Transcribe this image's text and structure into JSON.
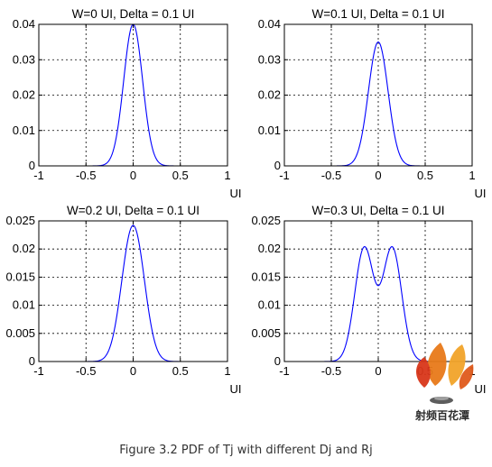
{
  "figure_caption": "Figure 3.2 PDF of Tj with different Dj and Rj",
  "watermark_text": "射频百花潭",
  "colors": {
    "line": "#0000ff",
    "axes": "#000000",
    "grid": "#000000",
    "background": "#ffffff"
  },
  "chart_data": [
    {
      "type": "line",
      "title": "W=0 UI, Delta = 0.1 UI",
      "xlabel": "UI",
      "ylabel": "",
      "xlim": [
        -1,
        1
      ],
      "ylim": [
        0,
        0.04
      ],
      "xticks": [
        -1,
        -0.5,
        0,
        0.5,
        1
      ],
      "xtick_labels": [
        "-1",
        "-0.5",
        "0",
        "0.5",
        "1"
      ],
      "yticks": [
        0,
        0.01,
        0.02,
        0.03,
        0.04
      ],
      "ytick_labels": [
        "0",
        "0.01",
        "0.02",
        "0.03",
        "0.04"
      ],
      "grid": true,
      "series": [
        {
          "x_range": [
            -0.9,
            0.9
          ],
          "W": 0,
          "Delta": 0.1,
          "peak": 0.04
        }
      ]
    },
    {
      "type": "line",
      "title": "W=0.1 UI, Delta = 0.1 UI",
      "xlabel": "UI",
      "ylabel": "",
      "xlim": [
        -1,
        1
      ],
      "ylim": [
        0,
        0.04
      ],
      "xticks": [
        -1,
        -0.5,
        0,
        0.5,
        1
      ],
      "xtick_labels": [
        "-1",
        "-0.5",
        "0",
        "0.5",
        "1"
      ],
      "yticks": [
        0,
        0.01,
        0.02,
        0.03,
        0.04
      ],
      "ytick_labels": [
        "0",
        "0.01",
        "0.02",
        "0.03",
        "0.04"
      ],
      "grid": true,
      "series": [
        {
          "x_range": [
            -0.9,
            0.9
          ],
          "W": 0.1,
          "Delta": 0.1,
          "peak": 0.035
        }
      ]
    },
    {
      "type": "line",
      "title": "W=0.2 UI, Delta = 0.1 UI",
      "xlabel": "UI",
      "ylabel": "",
      "xlim": [
        -1,
        1
      ],
      "ylim": [
        0,
        0.025
      ],
      "xticks": [
        -1,
        -0.5,
        0,
        0.5,
        1
      ],
      "xtick_labels": [
        "-1",
        "-0.5",
        "0",
        "0.5",
        "1"
      ],
      "yticks": [
        0,
        0.005,
        0.01,
        0.015,
        0.02,
        0.025
      ],
      "ytick_labels": [
        "0",
        "0.005",
        "0.01",
        "0.015",
        "0.02",
        "0.025"
      ],
      "grid": true,
      "series": [
        {
          "x_range": [
            -0.9,
            0.9
          ],
          "W": 0.2,
          "Delta": 0.1,
          "peak": 0.0242
        }
      ]
    },
    {
      "type": "line",
      "title": "W=0.3 UI, Delta = 0.1 UI",
      "xlabel": "UI",
      "ylabel": "",
      "xlim": [
        -1,
        1
      ],
      "ylim": [
        0,
        0.025
      ],
      "xticks": [
        -1,
        -0.5,
        0,
        0.5,
        1
      ],
      "xtick_labels": [
        "-1",
        "-0.5",
        "0",
        "0.5",
        "1"
      ],
      "yticks": [
        0,
        0.005,
        0.01,
        0.015,
        0.02,
        0.025
      ],
      "ytick_labels": [
        "0",
        "0.005",
        "0.01",
        "0.015",
        "0.02",
        "0.025"
      ],
      "grid": true,
      "series": [
        {
          "x_range": [
            -0.9,
            0.9
          ],
          "W": 0.3,
          "Delta": 0.1,
          "peak": 0.0203,
          "center_dip": 0.0135
        }
      ]
    }
  ]
}
